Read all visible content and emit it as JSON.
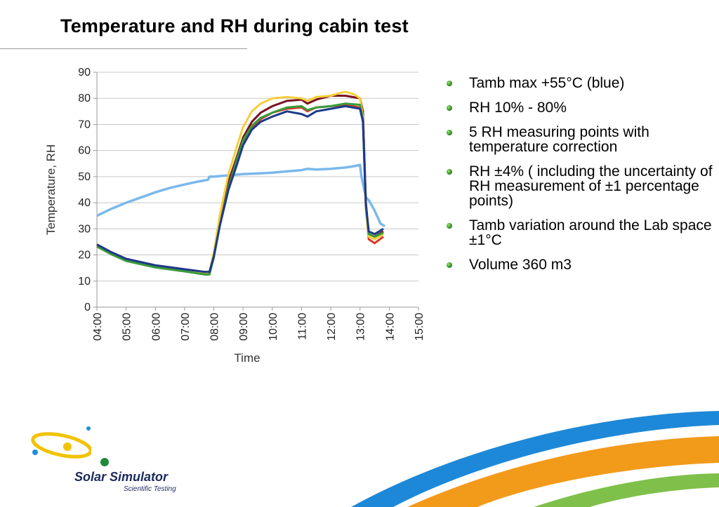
{
  "slide": {
    "title": "Temperature and RH during cabin test"
  },
  "bullets": [
    "Tamb max +55°C (blue)",
    "RH 10% - 80%",
    "5 RH measuring points with temperature correction",
    "RH ±4% ( including the uncertainty of RH measurement of ±1 percentage points)",
    "Tamb variation around the Lab space ±1°C",
    "Volume 360 m3"
  ],
  "logo": {
    "name": "Solar Simulator",
    "tagline": "Scientific Testing",
    "colors": {
      "yellow": "#f2c200",
      "blue": "#1e8fd6",
      "green": "#1e8a3c",
      "navy": "#1c2a5c"
    }
  },
  "decor": {
    "colors": [
      "#1e88d8",
      "#f29a1a",
      "#7fc04a"
    ]
  },
  "chart_data": {
    "type": "line",
    "title": "",
    "xlabel": "Time",
    "ylabel": "Temperature, RH",
    "xlim": [
      4,
      15
    ],
    "ylim": [
      0,
      90
    ],
    "yticks": [
      0,
      10,
      20,
      30,
      40,
      50,
      60,
      70,
      80,
      90
    ],
    "xticks": [
      "04:00",
      "05:00",
      "06:00",
      "07:00",
      "08:00",
      "09:00",
      "10:00",
      "11:00",
      "12:00",
      "13:00",
      "14:00",
      "15:00"
    ],
    "grid": true,
    "legend": "none",
    "series": [
      {
        "color": "#7ab8ec",
        "x": [
          4,
          4.5,
          5,
          5.5,
          6,
          6.5,
          7,
          7.5,
          7.8,
          7.85,
          8,
          8.5,
          9,
          9.5,
          10,
          10.5,
          11,
          11.2,
          11.5,
          12,
          12.5,
          12.8,
          13.0,
          13.05,
          13.2,
          13.3,
          13.5,
          13.7,
          13.85
        ],
        "values": [
          35,
          37.7,
          40,
          42,
          44,
          45.7,
          47,
          48.2,
          48.8,
          50,
          50,
          50.5,
          51,
          51.2,
          51.5,
          52,
          52.5,
          53,
          52.7,
          53,
          53.5,
          54,
          54.5,
          50,
          42,
          41,
          37,
          32,
          31
        ]
      },
      {
        "color": "#7a1020",
        "x": [
          4,
          4.5,
          5,
          6,
          7,
          7.7,
          7.85,
          8,
          8.2,
          8.5,
          8.8,
          9,
          9.3,
          9.6,
          10,
          10.5,
          11,
          11.2,
          11.5,
          12,
          12.5,
          13.0,
          13.1,
          13.2,
          13.3,
          13.5,
          13.8
        ],
        "values": [
          24,
          21,
          18.5,
          16,
          14.5,
          13.5,
          13.5,
          20,
          33,
          48,
          58,
          65,
          71,
          74.5,
          77,
          79,
          79.5,
          78,
          79.5,
          81,
          81,
          80,
          75,
          40,
          28,
          27,
          29
        ]
      },
      {
        "color": "#d63a2a",
        "x": [
          4,
          4.5,
          5,
          6,
          7,
          7.7,
          7.85,
          8,
          8.2,
          8.5,
          8.8,
          9,
          9.3,
          9.6,
          10,
          10.5,
          11,
          11.2,
          11.5,
          12,
          12.5,
          13.0,
          13.1,
          13.2,
          13.3,
          13.5,
          13.8
        ],
        "values": [
          23.5,
          20.5,
          18,
          15.5,
          14,
          13,
          13,
          19,
          32,
          46,
          56,
          63,
          69,
          72,
          74.5,
          76,
          76.5,
          75,
          76.5,
          77,
          77.5,
          76.5,
          72,
          38,
          26,
          24.5,
          27
        ]
      },
      {
        "color": "#f5cf3a",
        "x": [
          4,
          4.5,
          5,
          6,
          7,
          7.7,
          7.85,
          8,
          8.2,
          8.5,
          8.8,
          9,
          9.3,
          9.6,
          10,
          10.5,
          11,
          11.2,
          11.5,
          12,
          12.3,
          12.5,
          12.8,
          13.0,
          13.1,
          13.2,
          13.3,
          13.5,
          13.8
        ],
        "values": [
          23.8,
          20.8,
          18.3,
          15.8,
          14.3,
          13.3,
          13.3,
          21,
          35,
          51,
          62,
          69,
          75,
          78,
          80,
          80.5,
          80,
          79,
          80.5,
          81,
          82,
          82.5,
          81.5,
          80,
          73,
          37,
          27,
          26,
          28
        ]
      },
      {
        "color": "#3a9a3a",
        "x": [
          4,
          4.5,
          5,
          6,
          7,
          7.7,
          7.85,
          8,
          8.2,
          8.5,
          8.8,
          9,
          9.3,
          9.6,
          10,
          10.5,
          11,
          11.2,
          11.5,
          12,
          12.5,
          13.0,
          13.1,
          13.2,
          13.3,
          13.5,
          13.8
        ],
        "values": [
          23.2,
          20.2,
          17.7,
          15.2,
          13.7,
          12.5,
          12.5,
          19,
          31,
          46,
          57,
          64,
          69.5,
          72.5,
          74.5,
          76.5,
          77,
          75.5,
          76.5,
          77,
          78,
          77.5,
          72,
          39,
          28,
          27,
          28.5
        ]
      },
      {
        "color": "#1d3a8a",
        "x": [
          4,
          4.5,
          5,
          6,
          7,
          7.7,
          7.85,
          8,
          8.2,
          8.5,
          8.8,
          9,
          9.3,
          9.6,
          10,
          10.5,
          11,
          11.2,
          11.5,
          12,
          12.5,
          13.0,
          13.1,
          13.2,
          13.3,
          13.5,
          13.8
        ],
        "values": [
          24,
          21,
          18.5,
          16,
          14.5,
          13.5,
          13.5,
          19.5,
          31,
          45,
          55,
          62,
          68,
          71,
          73,
          75,
          74,
          73,
          75,
          76,
          77,
          76,
          71,
          39,
          29,
          28,
          30
        ]
      }
    ]
  }
}
